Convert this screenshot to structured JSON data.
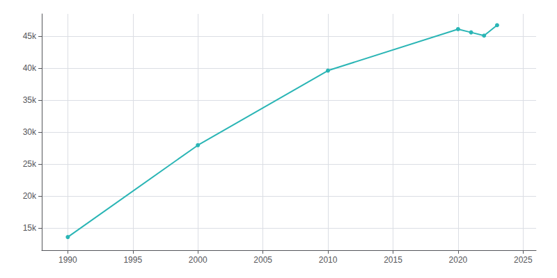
{
  "chart_data": {
    "type": "line",
    "x": [
      1990,
      2000,
      2010,
      2020,
      2021,
      2022,
      2023
    ],
    "values": [
      13561,
      27938,
      39627,
      46113,
      45605,
      45100,
      46731
    ],
    "color": "#2ab5b5",
    "marker": "circle",
    "xlim": [
      1988,
      2026
    ],
    "xticks": [
      1990,
      1995,
      2000,
      2005,
      2010,
      2015,
      2020,
      2025
    ],
    "ylim": [
      11500,
      48500
    ],
    "yticks": [
      {
        "value": 15000,
        "label": "15k"
      },
      {
        "value": 20000,
        "label": "20k"
      },
      {
        "value": 25000,
        "label": "25k"
      },
      {
        "value": 30000,
        "label": "30k"
      },
      {
        "value": 35000,
        "label": "35k"
      },
      {
        "value": 40000,
        "label": "40k"
      },
      {
        "value": 45000,
        "label": "45k"
      }
    ],
    "grid": true
  }
}
